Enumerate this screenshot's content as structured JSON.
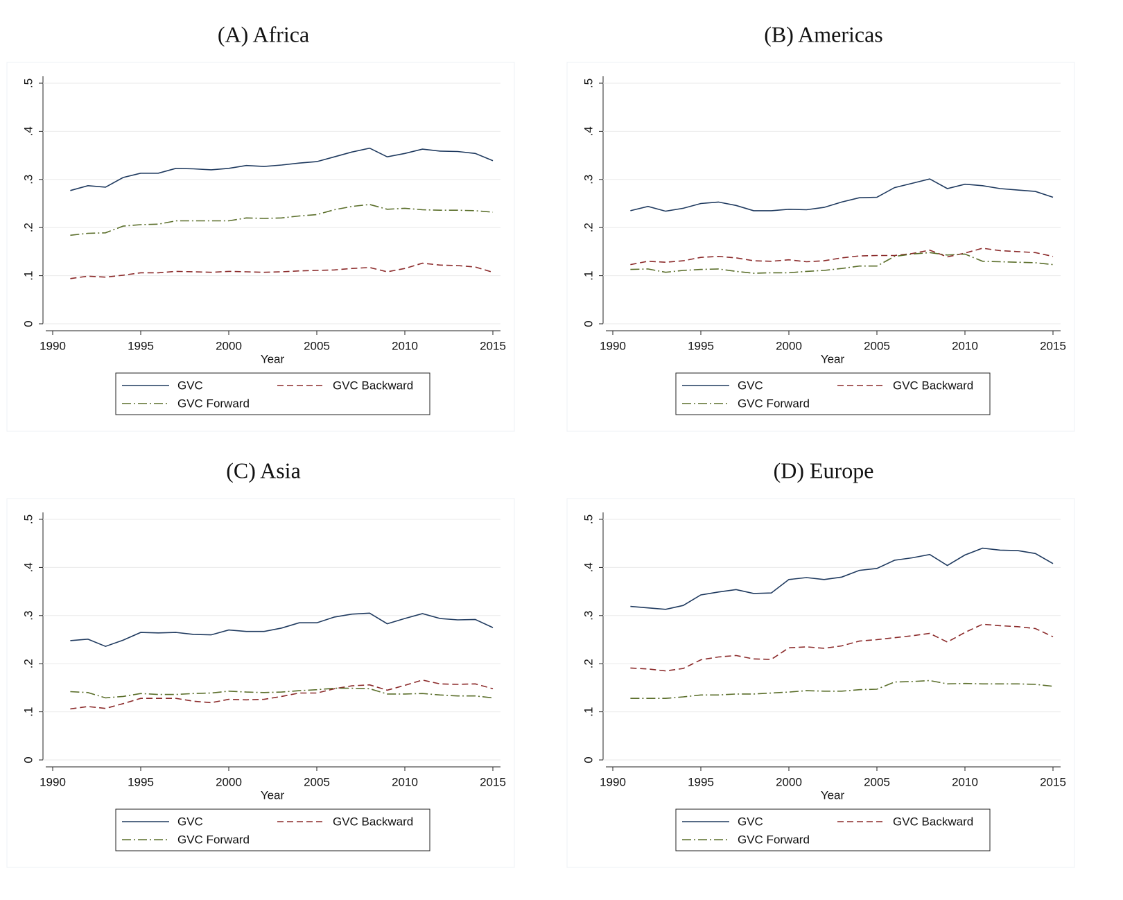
{
  "chart_data": [
    {
      "type": "line",
      "title": "(A) Africa",
      "x_label": "Year",
      "x": [
        1991,
        1992,
        1993,
        1994,
        1995,
        1996,
        1997,
        1998,
        1999,
        2000,
        2001,
        2002,
        2003,
        2004,
        2005,
        2006,
        2007,
        2008,
        2009,
        2010,
        2011,
        2012,
        2013,
        2014,
        2015
      ],
      "xlim": [
        1990,
        2015
      ],
      "xticks": [
        1990,
        1995,
        2000,
        2005,
        2010,
        2015
      ],
      "ylim": [
        0,
        0.5
      ],
      "yticks": [
        0,
        {
          "value": 0.1,
          "label": ".1"
        },
        {
          "value": 0.2,
          "label": ".2"
        },
        {
          "value": 0.3,
          "label": ".3"
        },
        {
          "value": 0.4,
          "label": ".4"
        },
        {
          "value": 0.5,
          "label": ".5"
        }
      ],
      "grid": true,
      "legend": "bottom",
      "series": [
        {
          "name": "GVC",
          "color": "#1f3a5f",
          "style": "solid",
          "values": [
            0.277,
            0.287,
            0.284,
            0.304,
            0.313,
            0.313,
            0.323,
            0.322,
            0.32,
            0.323,
            0.329,
            0.327,
            0.33,
            0.334,
            0.337,
            0.347,
            0.357,
            0.365,
            0.347,
            0.354,
            0.363,
            0.359,
            0.358,
            0.354,
            0.339
          ]
        },
        {
          "name": "GVC Backward",
          "color": "#8b2a2a",
          "style": "dash",
          "values": [
            0.094,
            0.099,
            0.097,
            0.101,
            0.106,
            0.106,
            0.109,
            0.108,
            0.107,
            0.109,
            0.108,
            0.107,
            0.108,
            0.11,
            0.111,
            0.112,
            0.115,
            0.117,
            0.108,
            0.115,
            0.126,
            0.122,
            0.121,
            0.118,
            0.107
          ]
        },
        {
          "name": "GVC Forward",
          "color": "#5a6e2a",
          "style": "dashdot",
          "values": [
            0.184,
            0.188,
            0.189,
            0.203,
            0.206,
            0.207,
            0.214,
            0.214,
            0.214,
            0.214,
            0.22,
            0.219,
            0.22,
            0.224,
            0.227,
            0.237,
            0.244,
            0.248,
            0.238,
            0.24,
            0.237,
            0.236,
            0.236,
            0.235,
            0.232
          ]
        }
      ]
    },
    {
      "type": "line",
      "title": "(B) Americas",
      "x_label": "Year",
      "x": [
        1991,
        1992,
        1993,
        1994,
        1995,
        1996,
        1997,
        1998,
        1999,
        2000,
        2001,
        2002,
        2003,
        2004,
        2005,
        2006,
        2007,
        2008,
        2009,
        2010,
        2011,
        2012,
        2013,
        2014,
        2015
      ],
      "xlim": [
        1990,
        2015
      ],
      "xticks": [
        1990,
        1995,
        2000,
        2005,
        2010,
        2015
      ],
      "ylim": [
        0,
        0.5
      ],
      "yticks": [
        0,
        {
          "value": 0.1,
          "label": ".1"
        },
        {
          "value": 0.2,
          "label": ".2"
        },
        {
          "value": 0.3,
          "label": ".3"
        },
        {
          "value": 0.4,
          "label": ".4"
        },
        {
          "value": 0.5,
          "label": ".5"
        }
      ],
      "grid": true,
      "legend": "bottom",
      "series": [
        {
          "name": "GVC",
          "color": "#1f3a5f",
          "style": "solid",
          "values": [
            0.235,
            0.244,
            0.234,
            0.24,
            0.25,
            0.253,
            0.246,
            0.235,
            0.235,
            0.238,
            0.237,
            0.242,
            0.253,
            0.262,
            0.263,
            0.283,
            0.292,
            0.301,
            0.281,
            0.29,
            0.287,
            0.281,
            0.278,
            0.275,
            0.263
          ]
        },
        {
          "name": "GVC Backward",
          "color": "#8b2a2a",
          "style": "dash",
          "values": [
            0.123,
            0.13,
            0.128,
            0.131,
            0.138,
            0.14,
            0.137,
            0.131,
            0.13,
            0.133,
            0.129,
            0.131,
            0.137,
            0.141,
            0.142,
            0.142,
            0.146,
            0.153,
            0.139,
            0.147,
            0.157,
            0.152,
            0.15,
            0.148,
            0.14
          ]
        },
        {
          "name": "GVC Forward",
          "color": "#5a6e2a",
          "style": "dashdot",
          "values": [
            0.113,
            0.114,
            0.107,
            0.111,
            0.113,
            0.114,
            0.109,
            0.105,
            0.106,
            0.106,
            0.109,
            0.111,
            0.115,
            0.12,
            0.12,
            0.14,
            0.145,
            0.148,
            0.143,
            0.145,
            0.13,
            0.129,
            0.128,
            0.127,
            0.123
          ]
        }
      ]
    },
    {
      "type": "line",
      "title": "(C) Asia",
      "x_label": "Year",
      "x": [
        1991,
        1992,
        1993,
        1994,
        1995,
        1996,
        1997,
        1998,
        1999,
        2000,
        2001,
        2002,
        2003,
        2004,
        2005,
        2006,
        2007,
        2008,
        2009,
        2010,
        2011,
        2012,
        2013,
        2014,
        2015
      ],
      "xlim": [
        1990,
        2015
      ],
      "xticks": [
        1990,
        1995,
        2000,
        2005,
        2010,
        2015
      ],
      "ylim": [
        0,
        0.5
      ],
      "yticks": [
        0,
        {
          "value": 0.1,
          "label": ".1"
        },
        {
          "value": 0.2,
          "label": ".2"
        },
        {
          "value": 0.3,
          "label": ".3"
        },
        {
          "value": 0.4,
          "label": ".4"
        },
        {
          "value": 0.5,
          "label": ".5"
        }
      ],
      "grid": true,
      "legend": "bottom",
      "series": [
        {
          "name": "GVC",
          "color": "#1f3a5f",
          "style": "solid",
          "values": [
            0.248,
            0.251,
            0.236,
            0.249,
            0.265,
            0.264,
            0.265,
            0.261,
            0.26,
            0.27,
            0.267,
            0.267,
            0.274,
            0.285,
            0.285,
            0.297,
            0.303,
            0.305,
            0.283,
            0.294,
            0.304,
            0.294,
            0.291,
            0.292,
            0.275
          ]
        },
        {
          "name": "GVC Backward",
          "color": "#8b2a2a",
          "style": "dash",
          "values": [
            0.106,
            0.111,
            0.107,
            0.117,
            0.128,
            0.128,
            0.128,
            0.122,
            0.119,
            0.126,
            0.125,
            0.126,
            0.132,
            0.139,
            0.139,
            0.148,
            0.154,
            0.156,
            0.145,
            0.155,
            0.166,
            0.158,
            0.157,
            0.158,
            0.148
          ]
        },
        {
          "name": "GVC Forward",
          "color": "#5a6e2a",
          "style": "dashdot",
          "values": [
            0.142,
            0.14,
            0.129,
            0.132,
            0.138,
            0.136,
            0.136,
            0.138,
            0.139,
            0.143,
            0.141,
            0.14,
            0.141,
            0.144,
            0.146,
            0.149,
            0.149,
            0.148,
            0.137,
            0.137,
            0.138,
            0.135,
            0.133,
            0.133,
            0.129
          ]
        }
      ]
    },
    {
      "type": "line",
      "title": "(D) Europe",
      "x_label": "Year",
      "x": [
        1991,
        1992,
        1993,
        1994,
        1995,
        1996,
        1997,
        1998,
        1999,
        2000,
        2001,
        2002,
        2003,
        2004,
        2005,
        2006,
        2007,
        2008,
        2009,
        2010,
        2011,
        2012,
        2013,
        2014,
        2015
      ],
      "xlim": [
        1990,
        2015
      ],
      "xticks": [
        1990,
        1995,
        2000,
        2005,
        2010,
        2015
      ],
      "ylim": [
        0,
        0.5
      ],
      "yticks": [
        0,
        {
          "value": 0.1,
          "label": ".1"
        },
        {
          "value": 0.2,
          "label": ".2"
        },
        {
          "value": 0.3,
          "label": ".3"
        },
        {
          "value": 0.4,
          "label": ".4"
        },
        {
          "value": 0.5,
          "label": ".5"
        }
      ],
      "grid": true,
      "legend": "bottom",
      "series": [
        {
          "name": "GVC",
          "color": "#1f3a5f",
          "style": "solid",
          "values": [
            0.319,
            0.316,
            0.313,
            0.321,
            0.343,
            0.349,
            0.354,
            0.346,
            0.347,
            0.375,
            0.379,
            0.375,
            0.38,
            0.394,
            0.398,
            0.415,
            0.42,
            0.427,
            0.404,
            0.426,
            0.44,
            0.436,
            0.435,
            0.429,
            0.408
          ]
        },
        {
          "name": "GVC Backward",
          "color": "#8b2a2a",
          "style": "dash",
          "values": [
            0.191,
            0.189,
            0.185,
            0.19,
            0.208,
            0.214,
            0.217,
            0.21,
            0.209,
            0.233,
            0.235,
            0.232,
            0.237,
            0.247,
            0.25,
            0.254,
            0.258,
            0.263,
            0.245,
            0.265,
            0.282,
            0.279,
            0.277,
            0.273,
            0.256
          ]
        },
        {
          "name": "GVC Forward",
          "color": "#5a6e2a",
          "style": "dashdot",
          "values": [
            0.128,
            0.128,
            0.128,
            0.131,
            0.135,
            0.135,
            0.137,
            0.137,
            0.139,
            0.141,
            0.144,
            0.143,
            0.143,
            0.146,
            0.147,
            0.162,
            0.163,
            0.165,
            0.158,
            0.159,
            0.158,
            0.158,
            0.158,
            0.157,
            0.153
          ]
        }
      ]
    }
  ]
}
